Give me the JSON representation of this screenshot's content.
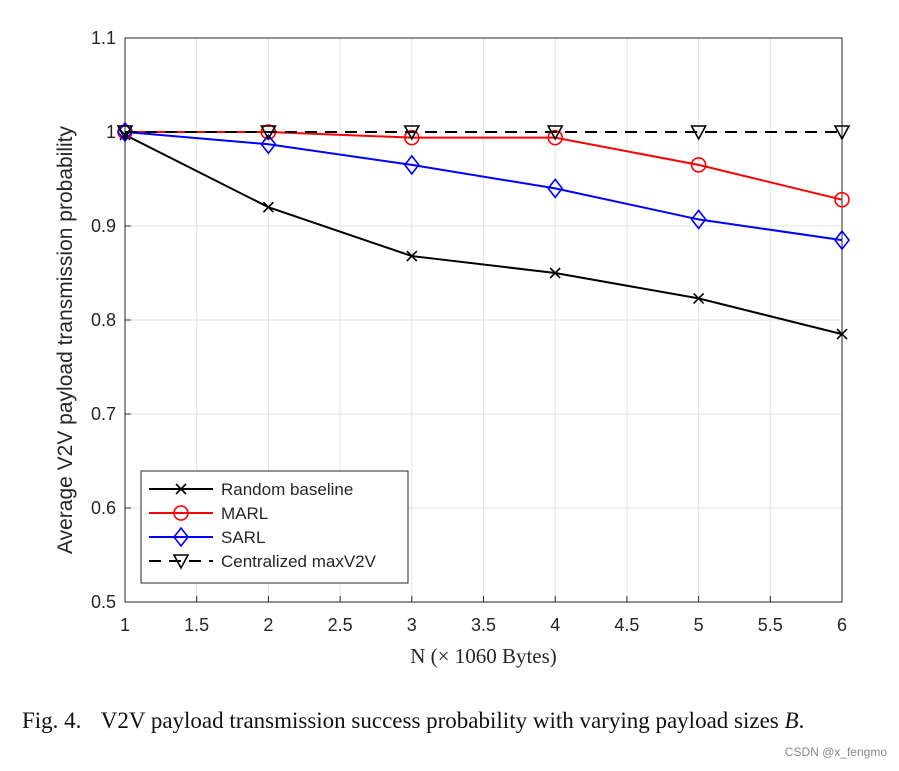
{
  "chart_data": {
    "type": "line",
    "xlabel": "N (× 1060 Bytes)",
    "ylabel": "Average V2V payload transmission probability",
    "xlim": [
      1,
      6
    ],
    "ylim": [
      0.5,
      1.1
    ],
    "xticks": [
      "1",
      "1.5",
      "2",
      "2.5",
      "3",
      "3.5",
      "4",
      "4.5",
      "5",
      "5.5",
      "6"
    ],
    "yticks": [
      "0.5",
      "0.6",
      "0.7",
      "0.8",
      "0.9",
      "1",
      "1.1"
    ],
    "grid": true,
    "legend_position": "bottom-left",
    "x": [
      1,
      2,
      3,
      4,
      5,
      6
    ],
    "series": [
      {
        "name": "Random baseline",
        "color": "#000000",
        "marker": "x",
        "dash": false,
        "values": [
          0.997,
          0.92,
          0.868,
          0.85,
          0.823,
          0.785
        ]
      },
      {
        "name": "MARL",
        "color": "#ff0000",
        "marker": "circle",
        "dash": false,
        "values": [
          1.0,
          1.0,
          0.994,
          0.994,
          0.965,
          0.928
        ]
      },
      {
        "name": "SARL",
        "color": "#0000ff",
        "marker": "diamond",
        "dash": false,
        "values": [
          1.0,
          0.987,
          0.965,
          0.94,
          0.907,
          0.885
        ]
      },
      {
        "name": "Centralized maxV2V",
        "color": "#000000",
        "marker": "triangle-down",
        "dash": true,
        "values": [
          1.0,
          1.0,
          1.0,
          1.0,
          1.0,
          1.0
        ]
      }
    ]
  },
  "caption": {
    "label": "Fig. 4.",
    "text": "V2V payload transmission success probability with varying payload sizes",
    "symbol": "B",
    "end": "."
  },
  "watermark": "CSDN @x_fengmo"
}
